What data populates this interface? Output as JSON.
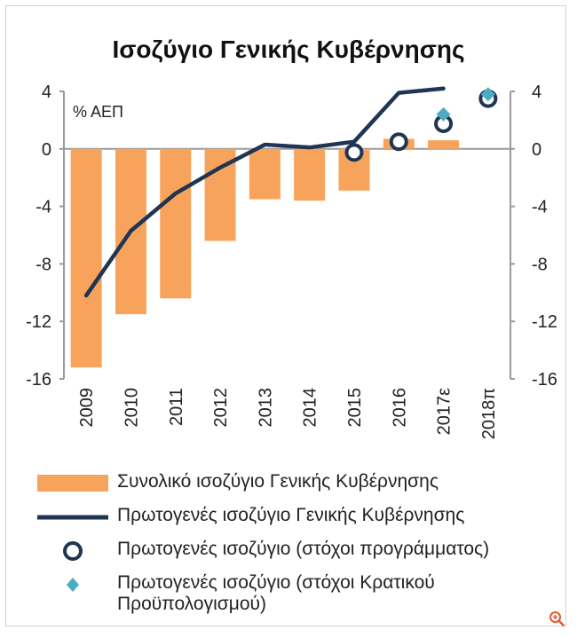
{
  "chart_data": {
    "type": "bar+line+scatter",
    "title": "Ισοζύγιο Γενικής Κυβέρνησης",
    "unit_label": "% ΑΕΠ",
    "ylim": [
      -16,
      4
    ],
    "yticks": [
      "4",
      "0",
      "-4",
      "-8",
      "-12",
      "-16"
    ],
    "ytick_values": [
      4,
      0,
      -4,
      -8,
      -12,
      -16
    ],
    "categories": [
      "2009",
      "2010",
      "2011",
      "2012",
      "2013",
      "2014",
      "2015",
      "2016",
      "2017ε",
      "2018π"
    ],
    "series": [
      {
        "name": "Συνολικό ισοζύγιο Γενικής Κυβέρνησης",
        "kind": "bar",
        "color": "#F7A35C",
        "values": [
          -15.2,
          -11.5,
          -10.4,
          -6.4,
          -3.5,
          -3.6,
          -2.9,
          0.7,
          0.6,
          null
        ]
      },
      {
        "name": "Πρωτογενές ισοζύγιο Γενικής Κυβέρνησης",
        "kind": "line",
        "color": "#1F3552",
        "values": [
          -10.2,
          -5.7,
          -3.1,
          -1.3,
          0.3,
          0.1,
          0.5,
          3.9,
          4.2,
          null
        ]
      },
      {
        "name": "Πρωτογενές ισοζύγιο (στόχοι προγράμματος)",
        "kind": "circle",
        "color": "#1F3552",
        "values": [
          null,
          null,
          null,
          null,
          null,
          null,
          -0.25,
          0.5,
          1.75,
          3.5
        ]
      },
      {
        "name": "Πρωτογενές ισοζύγιο (στόχοι Κρατικού Προϋπολογισμού)",
        "kind": "diamond",
        "color": "#4BACC6",
        "values": [
          null,
          null,
          null,
          null,
          null,
          null,
          null,
          null,
          2.4,
          3.8
        ]
      }
    ],
    "legend": {
      "placement": "bottom",
      "items": [
        {
          "label": "Συνολικό ισοζύγιο Γενικής Κυβέρνησης"
        },
        {
          "label": "Πρωτογενές ισοζύγιο Γενικής Κυβέρνησης"
        },
        {
          "label": "Πρωτογενές ισοζύγιο (στόχοι προγράμματος)"
        },
        {
          "label": "Πρωτογενές ισοζύγιο (στόχοι Κρατικού",
          "label_line2": "Προϋπολογισμού)"
        }
      ]
    },
    "grid": false
  },
  "icons": {
    "zoom": "zoom-icon"
  },
  "colors": {
    "bar": "#F7A35C",
    "line": "#1F3552",
    "diamond": "#4BACC6",
    "zoom": "#E8572A",
    "axis": "#9a9a9a"
  }
}
